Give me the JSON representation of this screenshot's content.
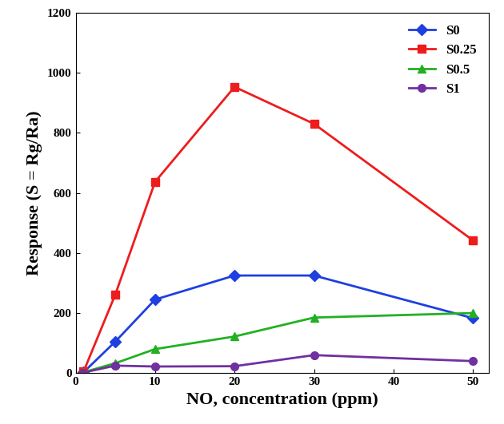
{
  "chart_data": {
    "type": "line",
    "x_label": "NO, concentration (ppm)",
    "y_label": "Response (S = Rg/Ra)",
    "x": [
      1,
      5,
      10,
      20,
      30,
      50
    ],
    "series": [
      {
        "name": "S0",
        "color": "#1f3fe0",
        "marker": "diamond",
        "values": [
          3,
          105,
          245,
          325,
          325,
          183
        ]
      },
      {
        "name": "S0.25",
        "color": "#ee1c1c",
        "marker": "square",
        "values": [
          5,
          262,
          637,
          953,
          830,
          442
        ]
      },
      {
        "name": "S0.5",
        "color": "#22b022",
        "marker": "triangle",
        "values": [
          3,
          33,
          80,
          122,
          185,
          200
        ]
      },
      {
        "name": "S1",
        "color": "#7030a0",
        "marker": "circle",
        "values": [
          2,
          25,
          22,
          23,
          60,
          40
        ]
      }
    ],
    "xlim": [
      0,
      52
    ],
    "xticks": [
      0,
      10,
      20,
      30,
      40,
      50
    ],
    "ylim": [
      0,
      1200
    ],
    "yticks": [
      0,
      200,
      400,
      600,
      800,
      1000,
      1200
    ],
    "legend": "upper right",
    "grid": false
  }
}
